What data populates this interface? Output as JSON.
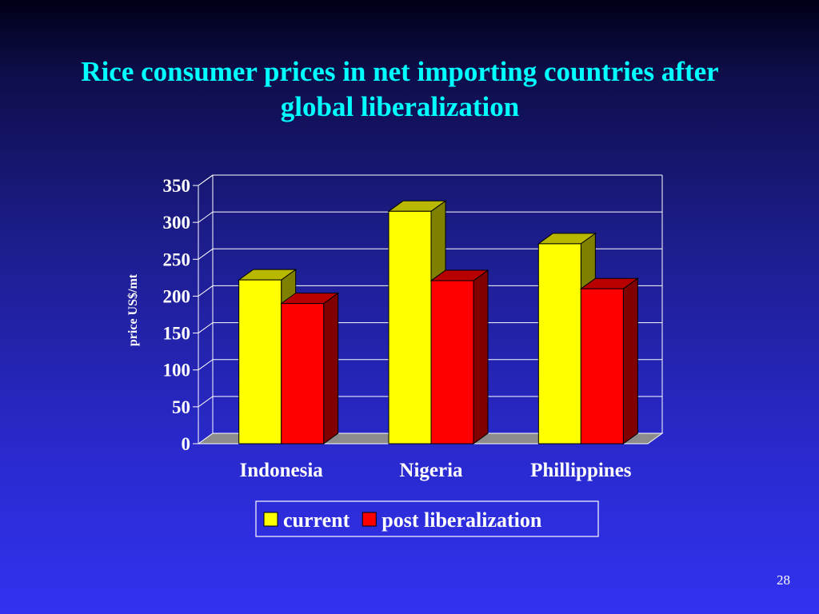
{
  "slide": {
    "title_line1": "Rice consumer prices in net importing countries after",
    "title_line2": "global liberalization",
    "page_number": "28"
  },
  "chart_data": {
    "type": "bar",
    "categories": [
      "Indonesia",
      "Nigeria",
      "Phillippines"
    ],
    "series": [
      {
        "name": "current",
        "values": [
          222,
          315,
          271
        ],
        "color": "#ffff00"
      },
      {
        "name": "post liberalization",
        "values": [
          190,
          221,
          210
        ],
        "color": "#ff0000"
      }
    ],
    "ylabel": "price US$/mt",
    "ylim": [
      0,
      350
    ],
    "yticks": [
      0,
      50,
      100,
      150,
      200,
      250,
      300,
      350
    ],
    "grid": true,
    "legend_position": "bottom-center",
    "three_d": true
  }
}
